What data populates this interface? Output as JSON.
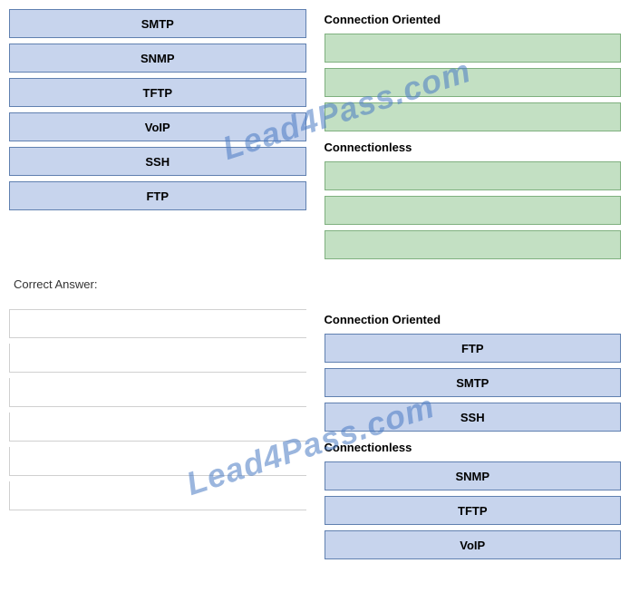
{
  "question": {
    "leftItems": [
      "SMTP",
      "SNMP",
      "TFTP",
      "VoIP",
      "SSH",
      "FTP"
    ],
    "rightSections": [
      {
        "header": "Connection Oriented",
        "slots": [
          "",
          "",
          ""
        ]
      },
      {
        "header": "Connectionless",
        "slots": [
          "",
          "",
          ""
        ]
      }
    ]
  },
  "answerLabel": "Correct Answer:",
  "answer": {
    "leftItems": [
      "",
      "",
      "",
      "",
      "",
      ""
    ],
    "rightSections": [
      {
        "header": "Connection Oriented",
        "slots": [
          "FTP",
          "SMTP",
          "SSH"
        ]
      },
      {
        "header": "Connectionless",
        "slots": [
          "SNMP",
          "TFTP",
          "VoIP"
        ]
      }
    ]
  },
  "watermark": "Lead4Pass.com",
  "colors": {
    "blueBg": "#c7d4ed",
    "blueBorder": "#6080b0",
    "greenBg": "#c3e0c3",
    "greenBorder": "#7fb07f",
    "watermarkColor": "#4a7bc4"
  }
}
